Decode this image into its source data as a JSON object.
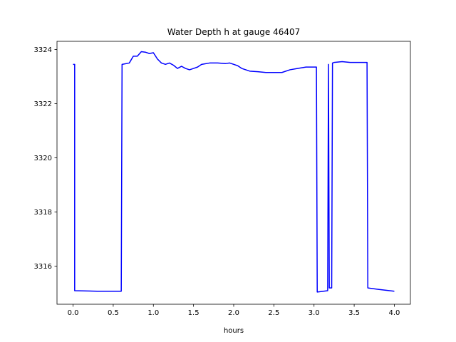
{
  "chart_data": {
    "type": "line",
    "title": "Water Depth h at gauge 46407",
    "xlabel": "hours",
    "ylabel": "",
    "xlim": [
      -0.2,
      4.2
    ],
    "ylim": [
      3314.6,
      3324.3
    ],
    "xticks": [
      0.0,
      0.5,
      1.0,
      1.5,
      2.0,
      2.5,
      3.0,
      3.5,
      4.0
    ],
    "xtick_labels": [
      "0.0",
      "0.5",
      "1.0",
      "1.5",
      "2.0",
      "2.5",
      "3.0",
      "3.5",
      "4.0"
    ],
    "yticks": [
      3316,
      3318,
      3320,
      3322,
      3324
    ],
    "ytick_labels": [
      "3316",
      "3318",
      "3320",
      "3322",
      "3324"
    ],
    "grid": false,
    "series": [
      {
        "color": "#0000ff",
        "x": [
          0.0,
          0.02,
          0.02,
          0.3,
          0.6,
          0.61,
          0.7,
          0.75,
          0.8,
          0.85,
          0.9,
          0.95,
          1.0,
          1.05,
          1.1,
          1.15,
          1.2,
          1.25,
          1.3,
          1.35,
          1.4,
          1.45,
          1.5,
          1.55,
          1.6,
          1.7,
          1.8,
          1.9,
          1.95,
          2.0,
          2.05,
          2.1,
          2.2,
          2.3,
          2.4,
          2.5,
          2.6,
          2.7,
          2.8,
          2.9,
          3.03,
          3.04,
          3.17,
          3.18,
          3.19,
          3.22,
          3.23,
          3.25,
          3.35,
          3.45,
          3.6,
          3.66,
          3.67,
          3.8,
          4.0
        ],
        "y": [
          3323.45,
          3323.45,
          3315.1,
          3315.08,
          3315.08,
          3323.45,
          3323.5,
          3323.75,
          3323.75,
          3323.92,
          3323.9,
          3323.85,
          3323.88,
          3323.65,
          3323.5,
          3323.45,
          3323.5,
          3323.42,
          3323.3,
          3323.38,
          3323.3,
          3323.25,
          3323.3,
          3323.35,
          3323.45,
          3323.5,
          3323.5,
          3323.48,
          3323.5,
          3323.45,
          3323.4,
          3323.3,
          3323.2,
          3323.18,
          3323.15,
          3323.15,
          3323.15,
          3323.25,
          3323.3,
          3323.35,
          3323.35,
          3315.05,
          3315.1,
          3323.45,
          3315.2,
          3315.2,
          3323.5,
          3323.52,
          3323.55,
          3323.52,
          3323.52,
          3323.52,
          3315.2,
          3315.15,
          3315.08
        ]
      }
    ]
  }
}
